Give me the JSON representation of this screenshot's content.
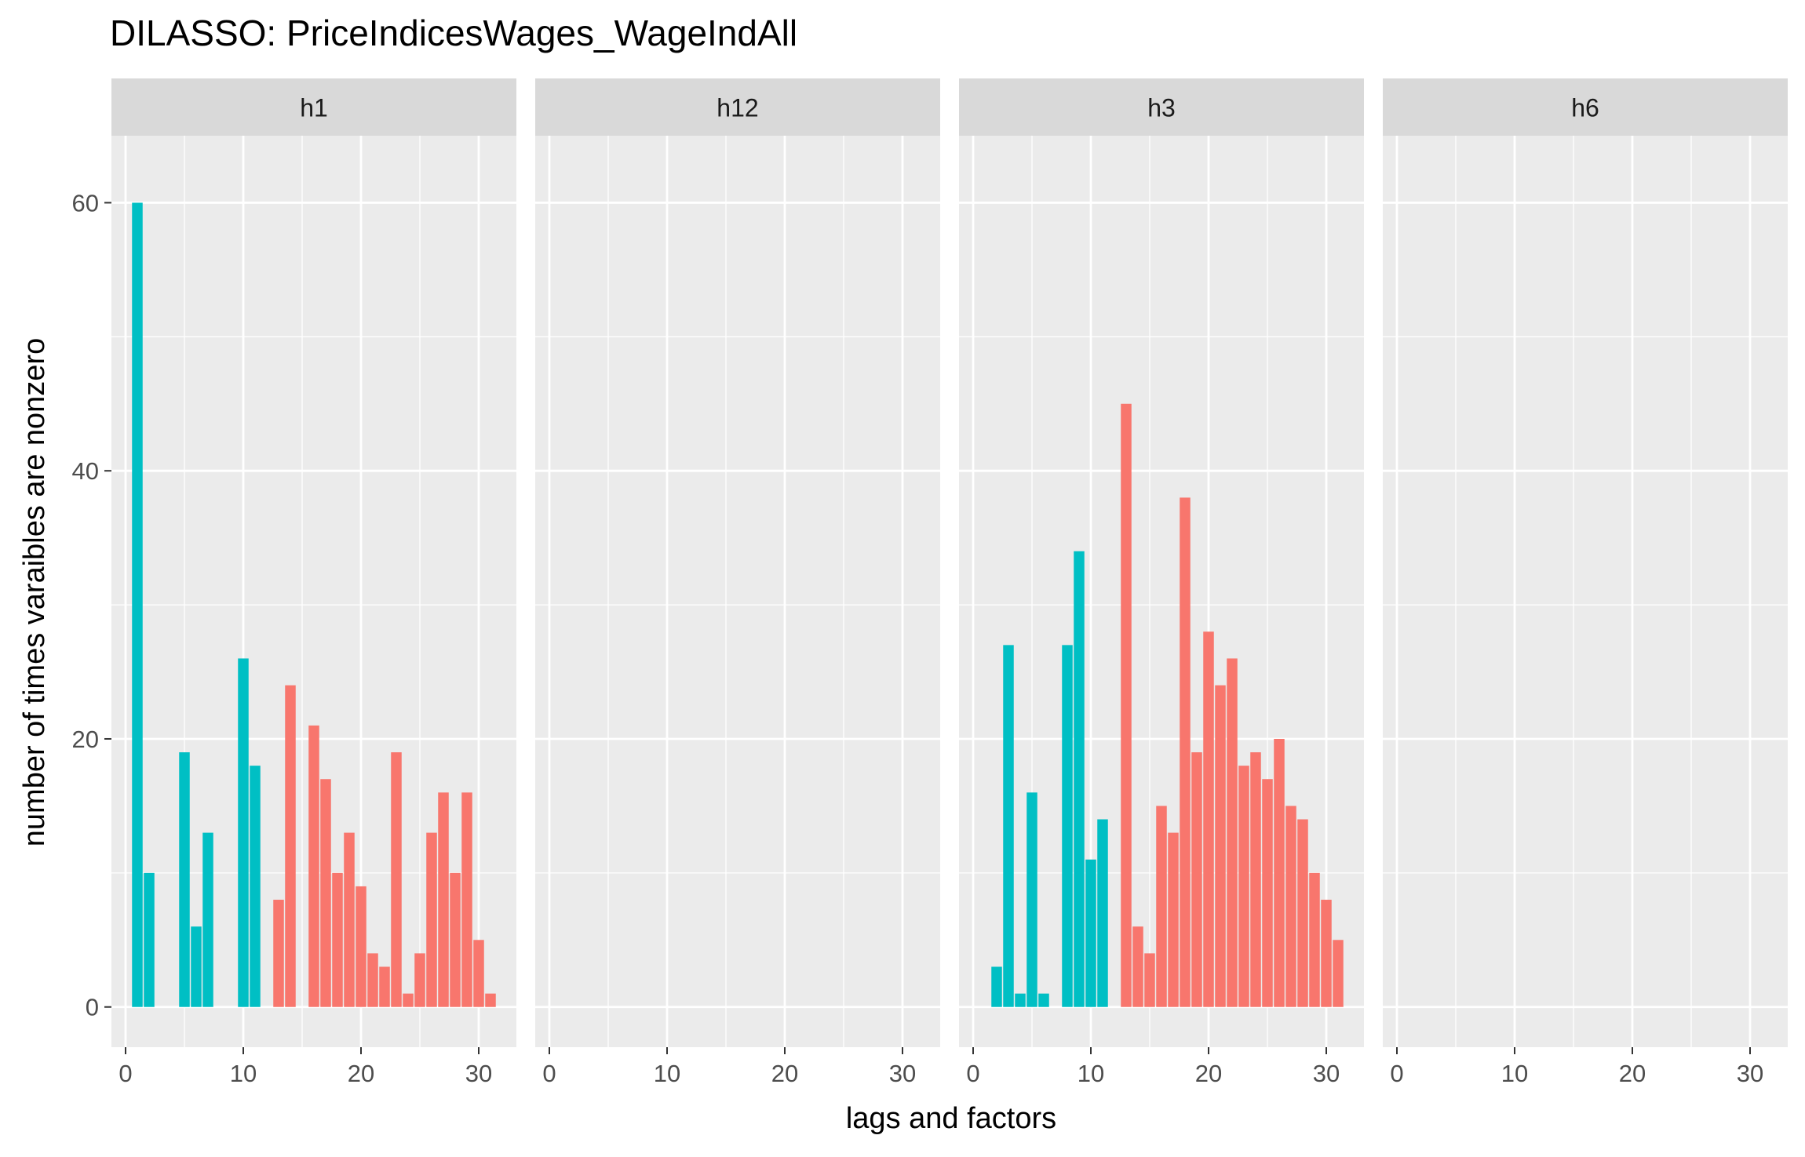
{
  "chart_data": {
    "type": "bar",
    "title": "DILASSO: PriceIndicesWages_WageIndAll",
    "xlabel": "lags and factors",
    "ylabel": "number of times varaibles are nonzero",
    "xlim": [
      -1.2,
      33.2
    ],
    "ylim": [
      -3,
      65
    ],
    "x_ticks": [
      0,
      10,
      20,
      30
    ],
    "y_ticks": [
      0,
      20,
      40,
      60
    ],
    "grid": true,
    "legend": "none",
    "colors": {
      "lags": "#00BFC4",
      "factors": "#F8766D",
      "panel_bg": "#EBEBEB",
      "strip_bg": "#D9D9D9",
      "grid": "#FFFFFF"
    },
    "panels": [
      {
        "label": "h1",
        "series": [
          {
            "color_key": "lags",
            "x": [
              1,
              2,
              5,
              6,
              7,
              10,
              11
            ],
            "values": [
              60,
              10,
              19,
              6,
              13,
              26,
              18
            ]
          },
          {
            "color_key": "factors",
            "x": [
              13,
              14,
              16,
              17,
              18,
              19,
              20,
              21,
              22,
              23,
              24,
              25,
              26,
              27,
              28,
              29,
              30,
              31
            ],
            "values": [
              8,
              24,
              21,
              17,
              10,
              13,
              9,
              4,
              3,
              19,
              1,
              4,
              13,
              16,
              10,
              16,
              5,
              1
            ]
          }
        ]
      },
      {
        "label": "h12",
        "series": []
      },
      {
        "label": "h3",
        "series": [
          {
            "color_key": "lags",
            "x": [
              2,
              3,
              4,
              5,
              6,
              8,
              9,
              10,
              11
            ],
            "values": [
              3,
              27,
              1,
              16,
              1,
              27,
              34,
              11,
              14
            ]
          },
          {
            "color_key": "factors",
            "x": [
              13,
              14,
              15,
              16,
              17,
              18,
              19,
              20,
              21,
              22,
              23,
              24,
              25,
              26,
              27,
              28,
              29,
              30,
              31
            ],
            "values": [
              45,
              6,
              4,
              15,
              13,
              38,
              19,
              28,
              24,
              26,
              18,
              19,
              17,
              20,
              15,
              14,
              10,
              8,
              5
            ]
          }
        ]
      },
      {
        "label": "h6",
        "series": []
      }
    ]
  }
}
